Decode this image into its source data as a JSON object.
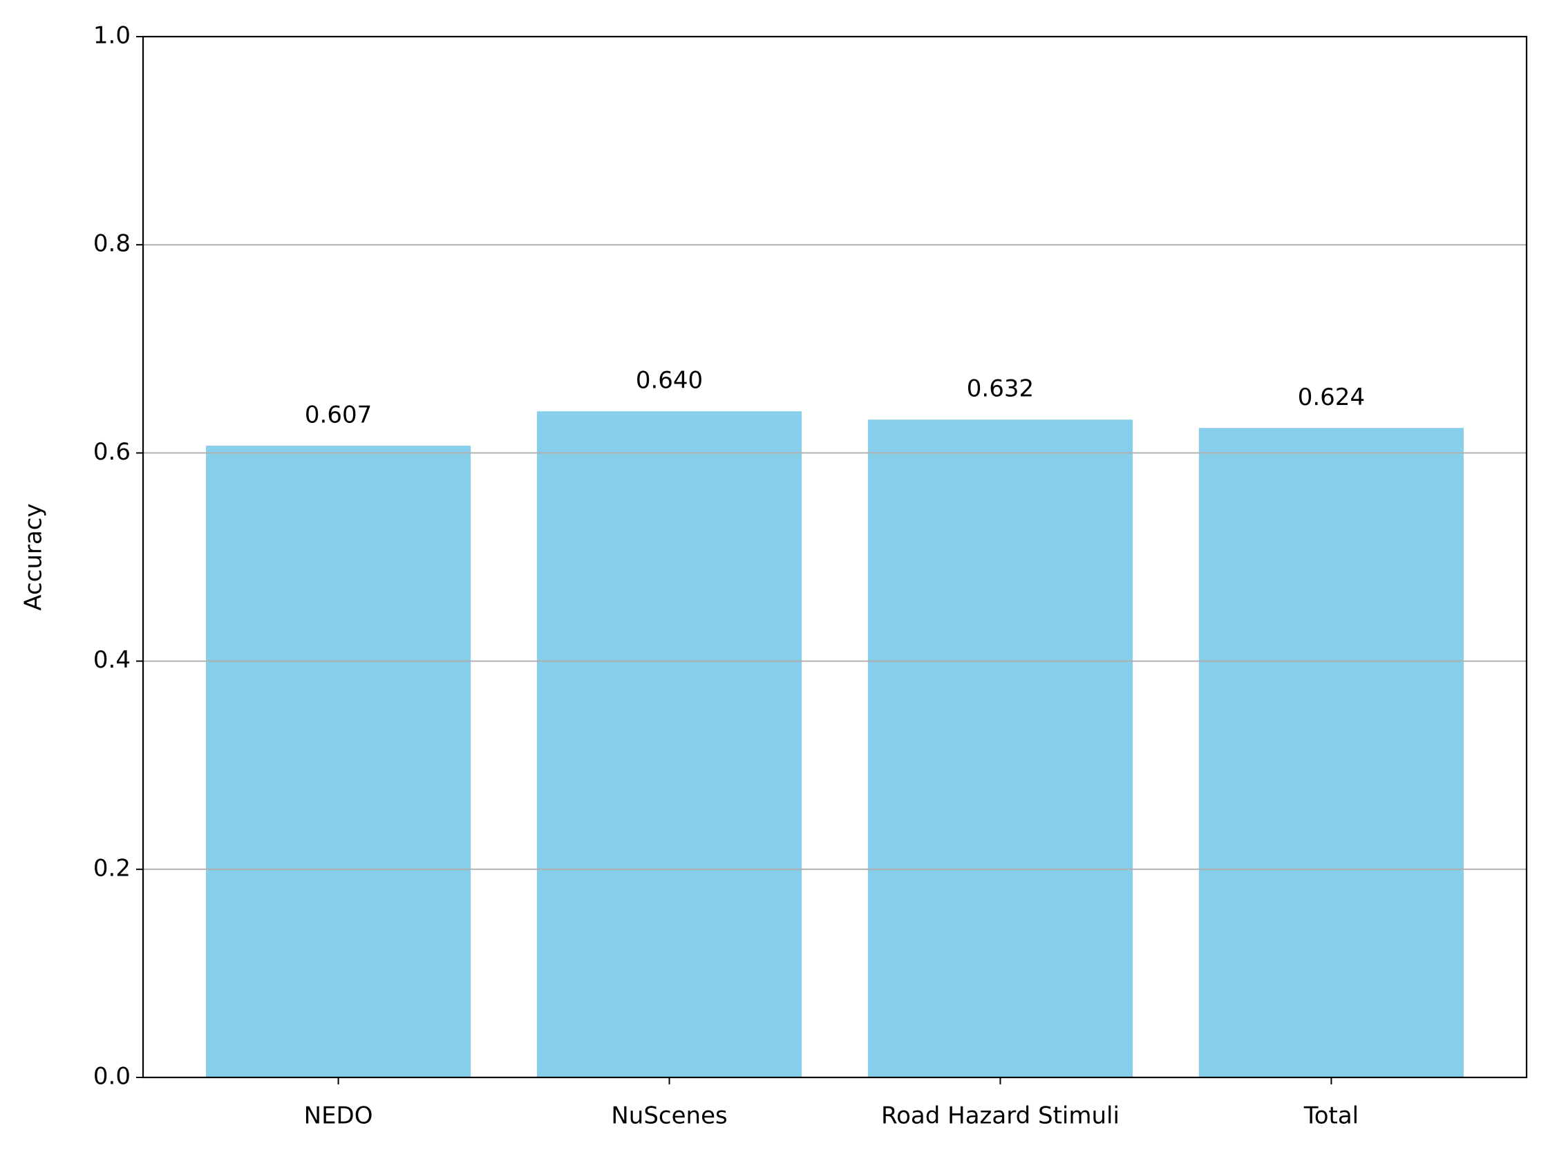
{
  "chart_data": {
    "type": "bar",
    "y_label": "Accuracy",
    "categories": [
      "NEDO",
      "NuScenes",
      "Road Hazard Stimuli",
      "Total"
    ],
    "values": [
      0.607,
      0.64,
      0.632,
      0.624
    ],
    "value_labels": [
      "0.607",
      "0.640",
      "0.632",
      "0.624"
    ],
    "color": "#87ceeb",
    "ylim": [
      0,
      1
    ],
    "yticks": [
      {
        "value": 0,
        "label": "0.0"
      },
      0.2,
      0.4,
      0.6,
      0.8,
      {
        "value": 1,
        "label": "1.0"
      }
    ],
    "grid": true
  }
}
